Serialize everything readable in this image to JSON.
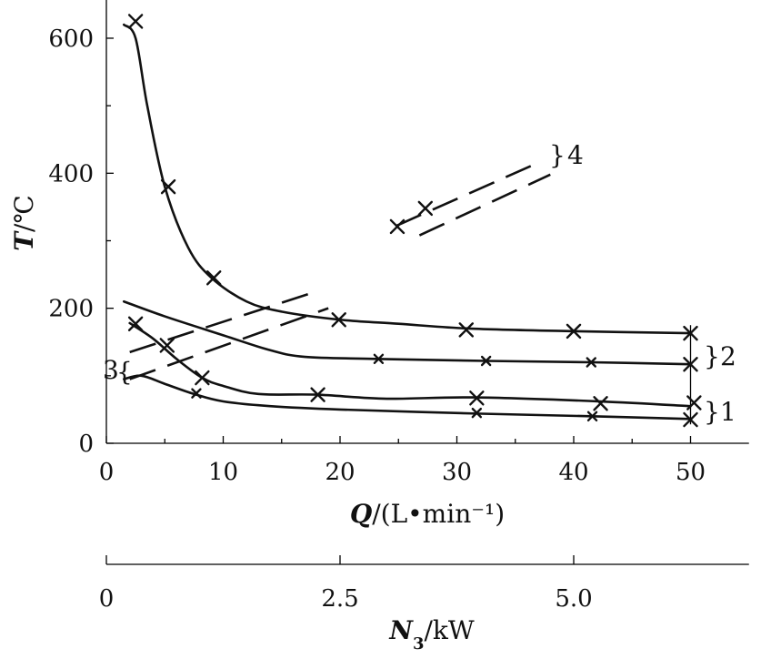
{
  "chart_data": {
    "type": "line",
    "y_axis": {
      "label_var": "T",
      "label_unit": "/℃",
      "ylim": [
        0,
        650
      ],
      "ticks": [
        0,
        200,
        400,
        600
      ],
      "tick_labels": [
        "0",
        "200",
        "400",
        "600"
      ]
    },
    "x_axis": {
      "label_var": "Q",
      "label_unit": "/(L•min⁻¹)",
      "xlim": [
        0,
        55
      ],
      "ticks": [
        0,
        10,
        20,
        30,
        40,
        50
      ],
      "tick_labels": [
        "0",
        "10",
        "20",
        "30",
        "40",
        "50"
      ]
    },
    "secondary_x_axis": {
      "label_var": "N",
      "label_sub": "3",
      "label_unit": "/kW",
      "ticks": [
        0,
        2.5,
        5.0
      ],
      "tick_labels": [
        "0",
        "2.5",
        "5.0"
      ],
      "q_equivalent": [
        0,
        20,
        40
      ]
    },
    "group_labels": [
      "1",
      "2",
      "3",
      "4"
    ],
    "series": [
      {
        "group": "top",
        "style": "solid",
        "points": [
          [
            1.5,
            620
          ],
          [
            2.5,
            600
          ],
          [
            3.5,
            500
          ],
          [
            5,
            380
          ],
          [
            7,
            290
          ],
          [
            9,
            245
          ],
          [
            12,
            210
          ],
          [
            15,
            195
          ],
          [
            20,
            183
          ],
          [
            25,
            177
          ],
          [
            31,
            170
          ],
          [
            40,
            166
          ],
          [
            50,
            163
          ]
        ],
        "markers": [
          [
            2.5,
            625
          ],
          [
            5.3,
            380
          ],
          [
            9.2,
            245
          ],
          [
            19.9,
            183
          ],
          [
            30.8,
            168
          ],
          [
            40,
            166
          ],
          [
            50,
            163
          ]
        ]
      },
      {
        "group": "2",
        "style": "solid",
        "points": [
          [
            1.5,
            210
          ],
          [
            5,
            188
          ],
          [
            10,
            160
          ],
          [
            14,
            138
          ],
          [
            17,
            128
          ],
          [
            23,
            125
          ],
          [
            32.5,
            122
          ],
          [
            41.5,
            120
          ],
          [
            50,
            117
          ]
        ],
        "markers": [
          [
            23.3,
            125
          ],
          [
            32.5,
            122
          ],
          [
            41.5,
            120
          ],
          [
            50,
            117
          ]
        ]
      },
      {
        "group": "upper-low",
        "style": "solid",
        "points": [
          [
            2,
            178
          ],
          [
            4,
            155
          ],
          [
            6,
            125
          ],
          [
            8.2,
            97
          ],
          [
            10,
            85
          ],
          [
            13,
            73
          ],
          [
            18,
            72
          ],
          [
            24,
            66
          ],
          [
            31.5,
            68
          ],
          [
            42.3,
            62
          ],
          [
            50,
            55
          ]
        ],
        "markers": [
          [
            2.5,
            177
          ],
          [
            5.2,
            145
          ],
          [
            8.2,
            97
          ],
          [
            18.1,
            72
          ],
          [
            31.7,
            67
          ],
          [
            42.3,
            59
          ],
          [
            50.3,
            60
          ]
        ]
      },
      {
        "group": "1",
        "style": "solid",
        "points": [
          [
            1.5,
            95
          ],
          [
            3,
            100
          ],
          [
            5,
            88
          ],
          [
            7.5,
            73
          ],
          [
            10,
            62
          ],
          [
            14,
            55
          ],
          [
            20,
            50
          ],
          [
            31.7,
            44
          ],
          [
            41.5,
            40
          ],
          [
            50,
            36
          ]
        ],
        "markers": [
          [
            7.7,
            74
          ],
          [
            31.7,
            45
          ],
          [
            41.6,
            40
          ],
          [
            50,
            35
          ]
        ]
      },
      {
        "group": "3",
        "style": "dashed",
        "points": [
          [
            2,
            135
          ],
          [
            18,
            225
          ]
        ]
      },
      {
        "group": "3",
        "style": "dashed",
        "points": [
          [
            2,
            95
          ],
          [
            19,
            200
          ]
        ]
      },
      {
        "group": "4",
        "style": "dashed",
        "points": [
          [
            24.8,
            322
          ],
          [
            36.5,
            412
          ]
        ],
        "markers": [
          [
            24.9,
            321
          ],
          [
            27.3,
            348
          ]
        ]
      },
      {
        "group": "4",
        "style": "dashed",
        "points": [
          [
            26.8,
            308
          ],
          [
            38,
            398
          ]
        ]
      }
    ]
  }
}
